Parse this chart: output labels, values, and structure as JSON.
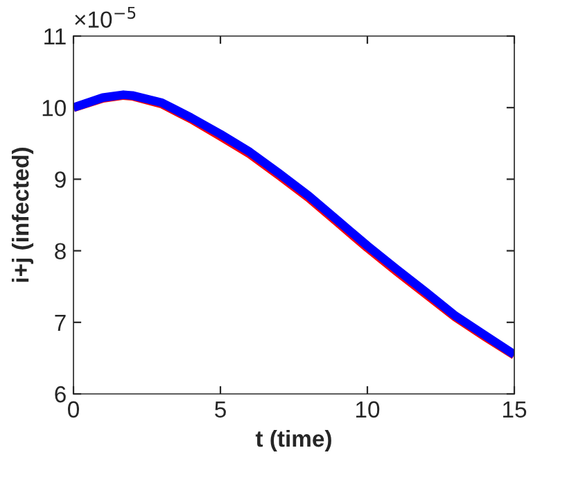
{
  "chart_data": {
    "type": "line",
    "xlabel": "t (time)",
    "ylabel": "i+j (infected)",
    "annotations": [
      "×10$^{−5}$"
    ],
    "x": [
      0,
      1,
      1.7,
      2,
      3,
      4,
      5,
      6,
      7,
      8,
      9,
      10,
      11,
      12,
      13,
      14,
      15
    ],
    "series": [
      {
        "color": "#ff0000",
        "values": [
          10.0,
          10.13,
          10.17,
          10.16,
          10.05,
          9.84,
          9.6,
          9.35,
          9.05,
          8.74,
          8.39,
          8.04,
          7.71,
          7.39,
          7.07,
          6.8,
          6.54
        ]
      },
      {
        "color": "#0000ff",
        "values": [
          10.0,
          10.14,
          10.18,
          10.17,
          10.07,
          9.86,
          9.63,
          9.38,
          9.08,
          8.77,
          8.42,
          8.07,
          7.74,
          7.42,
          7.09,
          6.82,
          6.55
        ]
      }
    ],
    "xlim": [
      0,
      15
    ],
    "xticks": [
      0,
      5,
      10,
      15
    ],
    "ylim": [
      6,
      11
    ],
    "yticks": [
      6,
      7,
      8,
      9,
      10,
      11
    ],
    "grid": false,
    "legend": false,
    "marker": "none",
    "line_style": "solid"
  }
}
